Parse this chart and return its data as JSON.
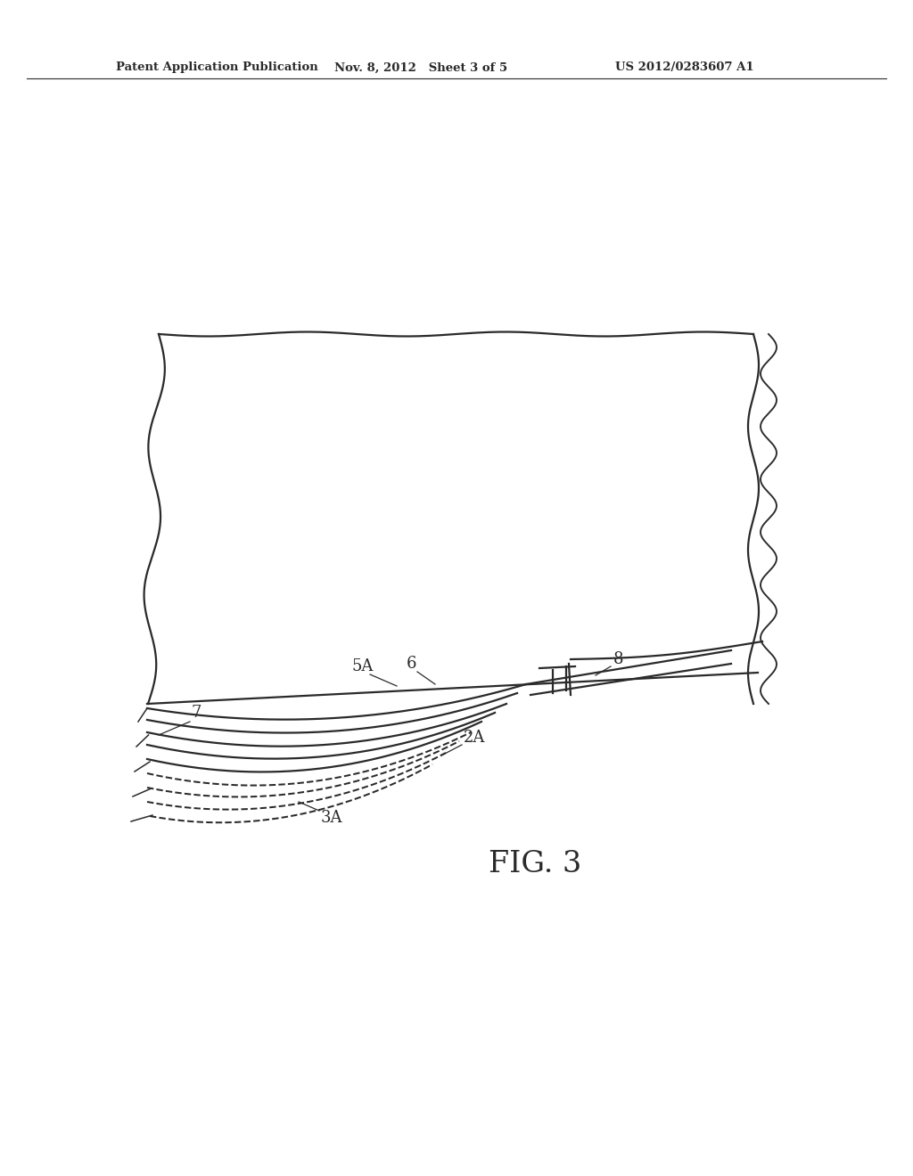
{
  "header_left": "Patent Application Publication",
  "header_mid": "Nov. 8, 2012   Sheet 3 of 5",
  "header_right": "US 2012/0283607 A1",
  "fig_label": "FIG. 3",
  "background": "#ffffff",
  "line_color": "#2a2a2a",
  "label_7": "7",
  "label_5A": "5A",
  "label_6": "6",
  "label_8": "8",
  "label_2A": "2A",
  "label_3A": "3A"
}
